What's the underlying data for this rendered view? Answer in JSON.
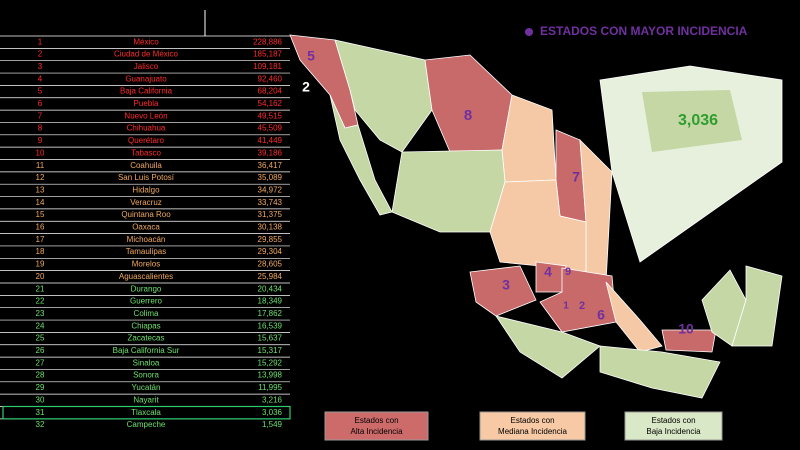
{
  "title": "ESTADOS CON MAYOR INCIDENCIA",
  "table": {
    "rows": [
      [
        "1",
        "México",
        "228,886"
      ],
      [
        "2",
        "Ciudad de México",
        "185,187"
      ],
      [
        "3",
        "Jalisco",
        "109,181"
      ],
      [
        "4",
        "Guanajuato",
        "92,460"
      ],
      [
        "5",
        "Baja California",
        "68,204"
      ],
      [
        "6",
        "Puebla",
        "54,162"
      ],
      [
        "7",
        "Nuevo León",
        "49,515"
      ],
      [
        "8",
        "Chihuahua",
        "45,509"
      ],
      [
        "9",
        "Querétaro",
        "41,449"
      ],
      [
        "10",
        "Tabasco",
        "39,186"
      ],
      [
        "11",
        "Coahuila",
        "36,417"
      ],
      [
        "12",
        "San Luis Potosí",
        "35,089"
      ],
      [
        "13",
        "Hidalgo",
        "34,972"
      ],
      [
        "14",
        "Veracruz",
        "33,743"
      ],
      [
        "15",
        "Quintana Roo",
        "31,375"
      ],
      [
        "16",
        "Oaxaca",
        "30,138"
      ],
      [
        "17",
        "Michoacán",
        "29,855"
      ],
      [
        "18",
        "Tamaulipas",
        "29,304"
      ],
      [
        "19",
        "Morelos",
        "28,605"
      ],
      [
        "20",
        "Aguascalientes",
        "25,984"
      ],
      [
        "21",
        "Durango",
        "20,434"
      ],
      [
        "22",
        "Guerrero",
        "18,349"
      ],
      [
        "23",
        "Colima",
        "17,862"
      ],
      [
        "24",
        "Chiapas",
        "16,539"
      ],
      [
        "25",
        "Zacatecas",
        "15,637"
      ],
      [
        "26",
        "Baja California Sur",
        "15,317"
      ],
      [
        "27",
        "Sinaloa",
        "15,292"
      ],
      [
        "28",
        "Sonora",
        "13,998"
      ],
      [
        "29",
        "Yucatán",
        "11,995"
      ],
      [
        "30",
        "Nayarit",
        "3,216"
      ],
      [
        "31",
        "Tlaxcala",
        "3,036"
      ],
      [
        "32",
        "Campeche",
        "1,549"
      ]
    ]
  },
  "map": {
    "labels": [
      "5",
      "2",
      "8",
      "7",
      "4",
      "9",
      "3",
      "1",
      "2",
      "6",
      "10",
      "3,036"
    ]
  },
  "legend": [
    [
      "Estados con",
      "Alta Incidencia"
    ],
    [
      "Estados con",
      "Mediana Incidencia"
    ],
    [
      "Estados con",
      "Baja Incidencia"
    ]
  ]
}
